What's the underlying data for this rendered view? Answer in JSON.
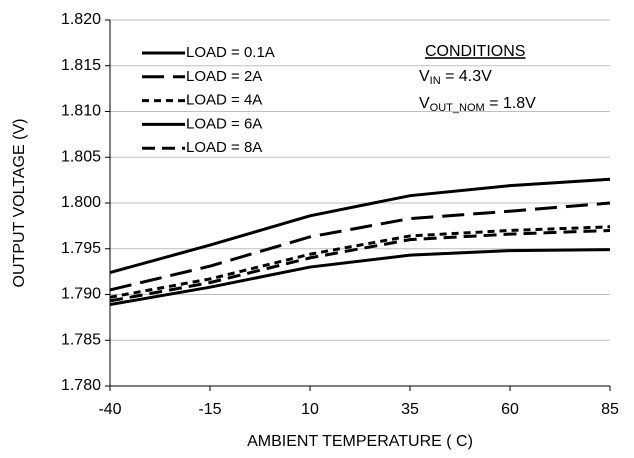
{
  "chart_data": {
    "type": "line",
    "x_label": "AMBIENT TEMPERATURE ( C)",
    "y_label": "OUTPUT VOLTAGE (V)",
    "x": [
      -40,
      -15,
      10,
      35,
      60,
      85
    ],
    "xlim": [
      -40,
      85
    ],
    "xticks": [
      -40,
      -15,
      10,
      35,
      60,
      85
    ],
    "ylim": [
      1.78,
      1.82
    ],
    "yticks": [
      {
        "value": 1.78,
        "label": "1.780"
      },
      1.785,
      {
        "value": 1.79,
        "label": "1.790"
      },
      1.795,
      {
        "value": 1.8,
        "label": "1.800"
      },
      1.805,
      {
        "value": 1.81,
        "label": "1.810"
      },
      1.815,
      {
        "value": 1.82,
        "label": "1.820"
      }
    ],
    "grid": true,
    "legend": "top-left",
    "series": [
      {
        "name": "LOAD = 0.1A",
        "color": "#000000",
        "dash": "solid",
        "values": [
          1.7924,
          1.7954,
          1.7986,
          1.8008,
          1.8019,
          1.8026
        ]
      },
      {
        "name": "LOAD = 2A",
        "color": "#000000",
        "dash": "long",
        "values": [
          1.7905,
          1.7931,
          1.7963,
          1.7983,
          1.7991,
          1.8
        ]
      },
      {
        "name": "LOAD = 4A",
        "color": "#000000",
        "dash": "short",
        "values": [
          1.7897,
          1.7917,
          1.7944,
          1.7964,
          1.797,
          1.7974
        ]
      },
      {
        "name": "LOAD = 6A",
        "color": "#000000",
        "dash": "solid",
        "values": [
          1.7889,
          1.7908,
          1.793,
          1.7943,
          1.7948,
          1.7949
        ]
      },
      {
        "name": "LOAD = 8A",
        "color": "#000000",
        "dash": "medium",
        "values": [
          1.7893,
          1.7913,
          1.794,
          1.796,
          1.7966,
          1.797
        ]
      }
    ],
    "annotations": [
      {
        "text": "CONDITIONS"
      },
      {
        "main": "V",
        "sub": "IN",
        "rest": " = 4.3V"
      },
      {
        "main": "V",
        "sub": "OUT_NOM",
        "rest": " = 1.8V"
      }
    ]
  }
}
